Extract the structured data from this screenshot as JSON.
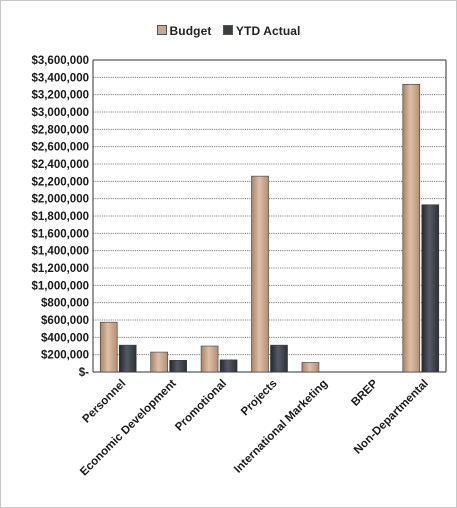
{
  "chart_data": {
    "type": "bar",
    "categories": [
      "Personnel",
      "Economic Development",
      "Promotional",
      "Projects",
      "International Marketing",
      "BREP",
      "Non-Departmental"
    ],
    "series": [
      {
        "name": "Budget",
        "values": [
          575000,
          230000,
          300000,
          2260000,
          110000,
          0,
          3320000
        ],
        "color": "#c9a88d"
      },
      {
        "name": "YTD Actual",
        "values": [
          310000,
          135000,
          140000,
          310000,
          0,
          0,
          1930000
        ],
        "color": "#3a3d45"
      }
    ],
    "y_tick_labels": [
      "$-",
      "$200,000",
      "$400,000",
      "$600,000",
      "$800,000",
      "$1,000,000",
      "$1,200,000",
      "$1,400,000",
      "$1,600,000",
      "$1,800,000",
      "$2,000,000",
      "$2,200,000",
      "$2,400,000",
      "$2,600,000",
      "$2,800,000",
      "$3,000,000",
      "$3,200,000",
      "$3,400,000",
      "$3,600,000"
    ],
    "ylim": [
      0,
      3600000
    ],
    "grid": true,
    "legend_position": "top"
  }
}
